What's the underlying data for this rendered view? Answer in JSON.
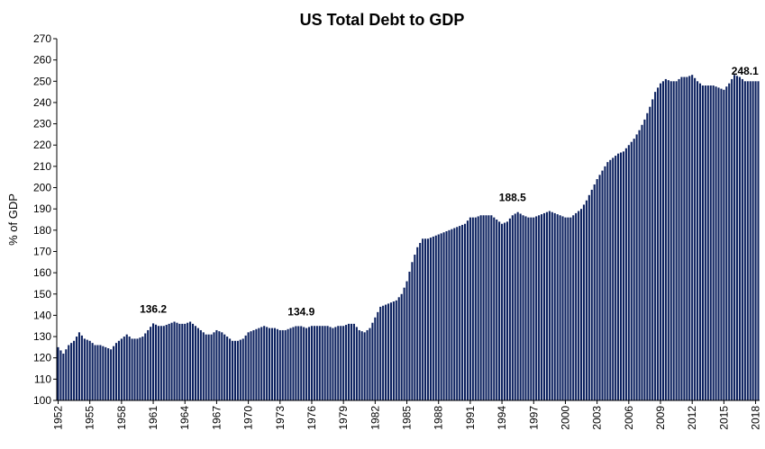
{
  "chart_data": {
    "type": "bar",
    "title": "US Total Debt to GDP",
    "xlabel": "",
    "ylabel": "% of GDP",
    "ylim": [
      100,
      270
    ],
    "yticks": [
      100,
      110,
      120,
      130,
      140,
      150,
      160,
      170,
      180,
      190,
      200,
      210,
      220,
      230,
      240,
      250,
      260,
      270
    ],
    "x_tick_labels": [
      "1952",
      "1955",
      "1958",
      "1961",
      "1964",
      "1967",
      "1970",
      "1973",
      "1976",
      "1979",
      "1982",
      "1985",
      "1988",
      "1991",
      "1994",
      "1997",
      "2000",
      "2003",
      "2006",
      "2009",
      "2012",
      "2015",
      "2018"
    ],
    "x_range": [
      1952.0,
      2018.25
    ],
    "frequency": "quarterly",
    "bar_color": "#0d2260",
    "grid": false,
    "legend": "none",
    "annotations": [
      {
        "text": "136.2",
        "x": 1961.0,
        "y": 136.2
      },
      {
        "text": "134.9",
        "x": 1975.0,
        "y": 134.9
      },
      {
        "text": "188.5",
        "x": 1995.0,
        "y": 188.5
      },
      {
        "text": "248.1",
        "x": 2017.0,
        "y": 248.1
      }
    ],
    "anchors": [
      [
        1952.0,
        125
      ],
      [
        1952.5,
        122
      ],
      [
        1953.0,
        126
      ],
      [
        1953.5,
        128
      ],
      [
        1954.0,
        132
      ],
      [
        1954.5,
        129
      ],
      [
        1955.0,
        128
      ],
      [
        1955.5,
        126
      ],
      [
        1956.0,
        126
      ],
      [
        1956.5,
        125
      ],
      [
        1957.0,
        124
      ],
      [
        1957.5,
        127
      ],
      [
        1958.0,
        129
      ],
      [
        1958.5,
        131
      ],
      [
        1959.0,
        129
      ],
      [
        1959.5,
        129
      ],
      [
        1960.0,
        130
      ],
      [
        1960.5,
        133
      ],
      [
        1961.0,
        136.2
      ],
      [
        1961.5,
        135
      ],
      [
        1962.0,
        135
      ],
      [
        1962.5,
        136
      ],
      [
        1963.0,
        137
      ],
      [
        1963.5,
        136
      ],
      [
        1964.0,
        136
      ],
      [
        1964.5,
        137
      ],
      [
        1965.0,
        135
      ],
      [
        1965.5,
        133
      ],
      [
        1966.0,
        131
      ],
      [
        1966.5,
        131
      ],
      [
        1967.0,
        133
      ],
      [
        1967.5,
        132
      ],
      [
        1968.0,
        130
      ],
      [
        1968.5,
        128
      ],
      [
        1969.0,
        128
      ],
      [
        1969.5,
        129
      ],
      [
        1970.0,
        132
      ],
      [
        1970.5,
        133
      ],
      [
        1971.0,
        134
      ],
      [
        1971.5,
        135
      ],
      [
        1972.0,
        134
      ],
      [
        1972.5,
        134
      ],
      [
        1973.0,
        133
      ],
      [
        1973.5,
        133
      ],
      [
        1974.0,
        134
      ],
      [
        1974.5,
        134.9
      ],
      [
        1975.0,
        134.9
      ],
      [
        1975.5,
        134
      ],
      [
        1976.0,
        135
      ],
      [
        1976.5,
        135
      ],
      [
        1977.0,
        135
      ],
      [
        1977.5,
        135
      ],
      [
        1978.0,
        134
      ],
      [
        1978.5,
        135
      ],
      [
        1979.0,
        135
      ],
      [
        1979.5,
        136
      ],
      [
        1980.0,
        136
      ],
      [
        1980.5,
        133
      ],
      [
        1981.0,
        132
      ],
      [
        1981.5,
        134
      ],
      [
        1982.0,
        139
      ],
      [
        1982.5,
        144
      ],
      [
        1983.0,
        145
      ],
      [
        1983.5,
        146
      ],
      [
        1984.0,
        147
      ],
      [
        1984.5,
        150
      ],
      [
        1985.0,
        156
      ],
      [
        1985.5,
        165
      ],
      [
        1986.0,
        172
      ],
      [
        1986.5,
        176
      ],
      [
        1987.0,
        176
      ],
      [
        1987.5,
        177
      ],
      [
        1988.0,
        178
      ],
      [
        1988.5,
        179
      ],
      [
        1989.0,
        180
      ],
      [
        1989.5,
        181
      ],
      [
        1990.0,
        182
      ],
      [
        1990.5,
        183
      ],
      [
        1991.0,
        186
      ],
      [
        1991.5,
        186
      ],
      [
        1992.0,
        187
      ],
      [
        1992.5,
        187
      ],
      [
        1993.0,
        187
      ],
      [
        1993.5,
        185
      ],
      [
        1994.0,
        183
      ],
      [
        1994.5,
        184
      ],
      [
        1995.0,
        187
      ],
      [
        1995.5,
        188.5
      ],
      [
        1996.0,
        187
      ],
      [
        1996.5,
        186
      ],
      [
        1997.0,
        186
      ],
      [
        1997.5,
        187
      ],
      [
        1998.0,
        188
      ],
      [
        1998.5,
        189
      ],
      [
        1999.0,
        188
      ],
      [
        1999.5,
        187
      ],
      [
        2000.0,
        186
      ],
      [
        2000.5,
        186
      ],
      [
        2001.0,
        188
      ],
      [
        2001.5,
        190
      ],
      [
        2002.0,
        194
      ],
      [
        2002.5,
        199
      ],
      [
        2003.0,
        204
      ],
      [
        2003.5,
        208
      ],
      [
        2004.0,
        212
      ],
      [
        2004.5,
        214
      ],
      [
        2005.0,
        216
      ],
      [
        2005.5,
        217
      ],
      [
        2006.0,
        220
      ],
      [
        2006.5,
        223
      ],
      [
        2007.0,
        227
      ],
      [
        2007.5,
        232
      ],
      [
        2008.0,
        238
      ],
      [
        2008.5,
        245
      ],
      [
        2009.0,
        249
      ],
      [
        2009.5,
        251
      ],
      [
        2010.0,
        250
      ],
      [
        2010.5,
        250
      ],
      [
        2011.0,
        252
      ],
      [
        2011.5,
        252
      ],
      [
        2012.0,
        253
      ],
      [
        2012.5,
        250
      ],
      [
        2013.0,
        248
      ],
      [
        2013.5,
        248
      ],
      [
        2014.0,
        248
      ],
      [
        2014.5,
        247
      ],
      [
        2015.0,
        246
      ],
      [
        2015.5,
        249
      ],
      [
        2016.0,
        253
      ],
      [
        2016.5,
        252
      ],
      [
        2017.0,
        250
      ],
      [
        2017.5,
        250
      ],
      [
        2018.0,
        250
      ],
      [
        2018.25,
        250
      ]
    ]
  }
}
